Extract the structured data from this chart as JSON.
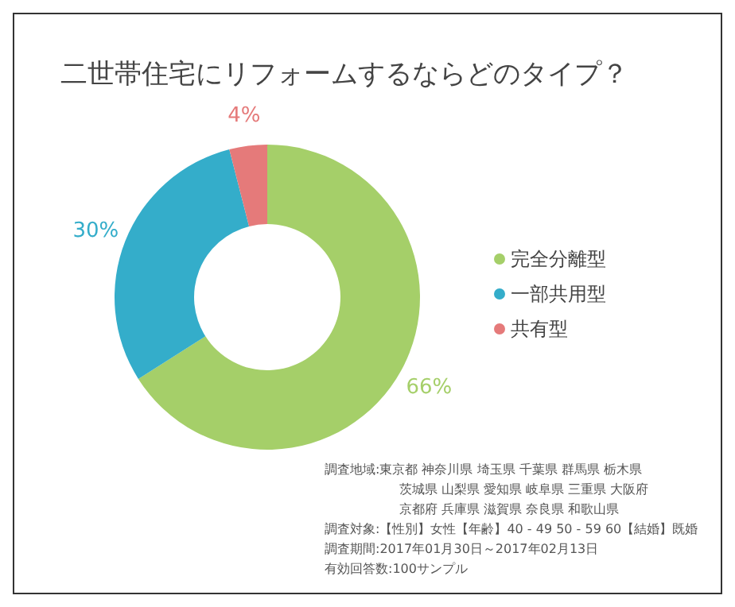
{
  "chart_data": {
    "type": "donut",
    "title": "二世帯住宅にリフォームするならどのタイプ？",
    "categories": [
      "完全分離型",
      "一部共用型",
      "共有型"
    ],
    "values": [
      66,
      30,
      4
    ],
    "value_labels": [
      "66%",
      "30%",
      "4%"
    ],
    "colors": [
      "#a5cf69",
      "#34adca",
      "#e57a7a"
    ],
    "legend": "right",
    "annotations": [
      "調査地域:東京都 神奈川県 埼玉県 千葉県 群馬県 栃木県",
      "茨城県 山梨県 愛知県 岐阜県 三重県 大阪府",
      "京都府 兵庫県 滋賀県 奈良県 和歌山県",
      "調査対象:【性別】女性【年齢】40 - 49 50 - 59 60【結婚】既婚",
      "調査期間:2017年01月30日～2017年02月13日",
      "有効回答数:100サンプル"
    ]
  }
}
